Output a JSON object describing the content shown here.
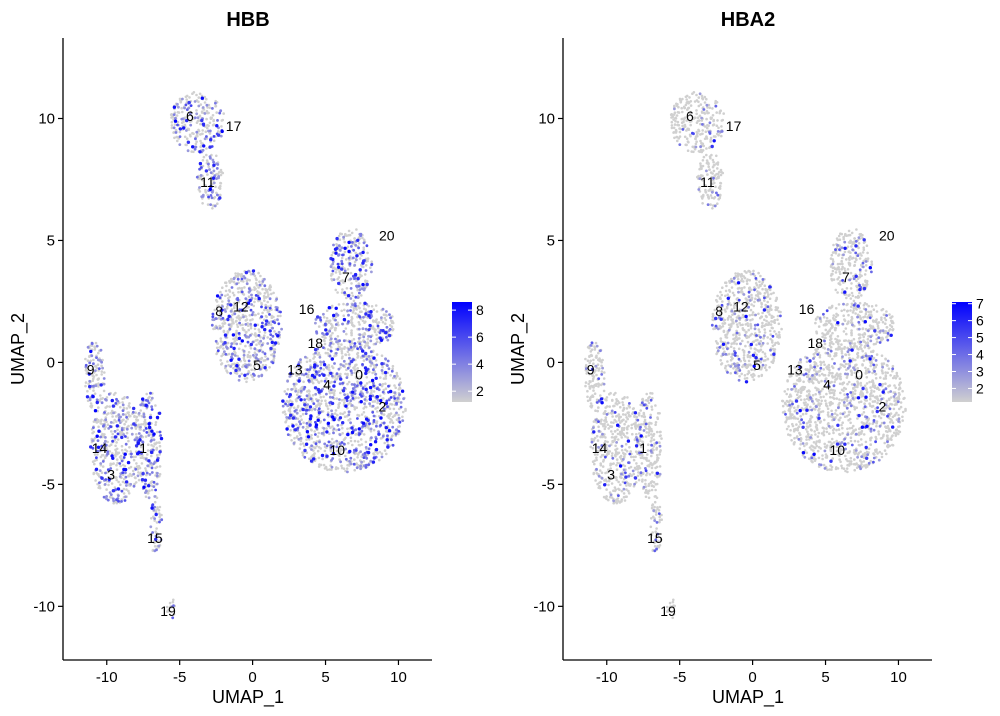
{
  "chart_data": [
    {
      "type": "scatter",
      "title": "HBB",
      "xlabel": "UMAP_1",
      "ylabel": "UMAP_2",
      "xlim": [
        -13,
        12.3
      ],
      "ylim": [
        -12.2,
        13.3
      ],
      "xticks": [
        -10,
        -5,
        0,
        5,
        10
      ],
      "yticks": [
        -10,
        -5,
        0,
        5,
        10
      ],
      "grid": false,
      "legend": {
        "placement": "right",
        "color_low": "#d0d0d0",
        "color_high": "#0000ff",
        "range": [
          1.2,
          8.6
        ],
        "ticks": [
          2,
          4,
          6,
          8
        ]
      },
      "expression_density": 0.34,
      "clusters": [
        {
          "label": "0",
          "x": 7.3,
          "y": -0.5
        },
        {
          "label": "1",
          "x": -7.5,
          "y": -3.5
        },
        {
          "label": "2",
          "x": 8.9,
          "y": -1.8
        },
        {
          "label": "3",
          "x": -9.7,
          "y": -4.6
        },
        {
          "label": "4",
          "x": 5.1,
          "y": -0.9
        },
        {
          "label": "5",
          "x": 0.3,
          "y": -0.1
        },
        {
          "label": "6",
          "x": -4.3,
          "y": 10.1
        },
        {
          "label": "7",
          "x": 6.4,
          "y": 3.5
        },
        {
          "label": "8",
          "x": -2.3,
          "y": 2.1
        },
        {
          "label": "9",
          "x": -11.1,
          "y": -0.3
        },
        {
          "label": "10",
          "x": 5.8,
          "y": -3.6
        },
        {
          "label": "11",
          "x": -3.1,
          "y": 7.4
        },
        {
          "label": "12",
          "x": -0.8,
          "y": 2.3
        },
        {
          "label": "13",
          "x": 2.9,
          "y": -0.3
        },
        {
          "label": "14",
          "x": -10.5,
          "y": -3.5
        },
        {
          "label": "15",
          "x": -6.7,
          "y": -7.2
        },
        {
          "label": "16",
          "x": 3.7,
          "y": 2.2
        },
        {
          "label": "17",
          "x": -1.3,
          "y": 9.7
        },
        {
          "label": "18",
          "x": 4.3,
          "y": 0.8
        },
        {
          "label": "19",
          "x": -5.8,
          "y": -10.2
        },
        {
          "label": "20",
          "x": 9.2,
          "y": 5.2
        }
      ]
    },
    {
      "type": "scatter",
      "title": "HBA2",
      "xlabel": "UMAP_1",
      "ylabel": "UMAP_2",
      "xlim": [
        -13,
        12.3
      ],
      "ylim": [
        -12.2,
        13.3
      ],
      "xticks": [
        -10,
        -5,
        0,
        5,
        10
      ],
      "yticks": [
        -10,
        -5,
        0,
        5,
        10
      ],
      "grid": false,
      "legend": {
        "placement": "right",
        "color_low": "#d0d0d0",
        "color_high": "#0000ff",
        "range": [
          1.2,
          7.1
        ],
        "ticks": [
          2,
          3,
          4,
          5,
          6,
          7
        ]
      },
      "expression_density": 0.12,
      "clusters": [
        {
          "label": "0",
          "x": 7.3,
          "y": -0.5
        },
        {
          "label": "1",
          "x": -7.5,
          "y": -3.5
        },
        {
          "label": "2",
          "x": 8.9,
          "y": -1.8
        },
        {
          "label": "3",
          "x": -9.7,
          "y": -4.6
        },
        {
          "label": "4",
          "x": 5.1,
          "y": -0.9
        },
        {
          "label": "5",
          "x": 0.3,
          "y": -0.1
        },
        {
          "label": "6",
          "x": -4.3,
          "y": 10.1
        },
        {
          "label": "7",
          "x": 6.4,
          "y": 3.5
        },
        {
          "label": "8",
          "x": -2.3,
          "y": 2.1
        },
        {
          "label": "9",
          "x": -11.1,
          "y": -0.3
        },
        {
          "label": "10",
          "x": 5.8,
          "y": -3.6
        },
        {
          "label": "11",
          "x": -3.1,
          "y": 7.4
        },
        {
          "label": "12",
          "x": -0.8,
          "y": 2.3
        },
        {
          "label": "13",
          "x": 2.9,
          "y": -0.3
        },
        {
          "label": "14",
          "x": -10.5,
          "y": -3.5
        },
        {
          "label": "15",
          "x": -6.7,
          "y": -7.2
        },
        {
          "label": "16",
          "x": 3.7,
          "y": 2.2
        },
        {
          "label": "17",
          "x": -1.3,
          "y": 9.7
        },
        {
          "label": "18",
          "x": 4.3,
          "y": 0.8
        },
        {
          "label": "19",
          "x": -5.8,
          "y": -10.2
        },
        {
          "label": "20",
          "x": 9.2,
          "y": 5.2
        }
      ]
    }
  ]
}
